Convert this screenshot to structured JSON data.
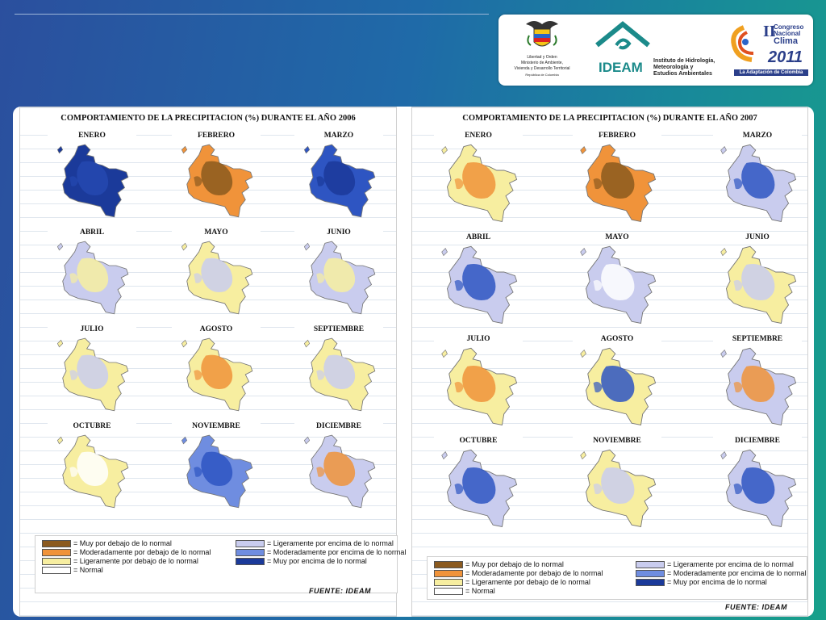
{
  "logos": {
    "gov_line1": "Libertad y Orden",
    "gov_line2": "Ministerio de Ambiente,",
    "gov_line3": "Vivienda y Desarrollo Territorial",
    "gov_line4": "República de Colombia",
    "ideam_name": "IDEAM",
    "ideam_sub1": "Instituto de Hidrología,",
    "ideam_sub2": "Meteorología y",
    "ideam_sub3": "Estudios Ambientales",
    "congress_roman": "II",
    "congress_line1": "Congreso",
    "congress_line2": "Nacional",
    "congress_line3": "Clima",
    "congress_year": "2011",
    "congress_tagline": "La Adaptación de Colombia"
  },
  "panels": [
    {
      "title": "COMPORTAMIENTO DE LA PRECIPITACION (%) DURANTE EL AÑO 2006",
      "months": [
        "ENERO",
        "FEBRERO",
        "MARZO",
        "ABRIL",
        "MAYO",
        "JUNIO",
        "JULIO",
        "AGOSTO",
        "SEPTIEMBRE",
        "OCTUBRE",
        "NOVIEMBRE",
        "DICIEMBRE"
      ],
      "source": "FUENTE: IDEAM"
    },
    {
      "title": "COMPORTAMIENTO DE LA PRECIPITACION (%) DURANTE EL AÑO 2007",
      "months": [
        "ENERO",
        "FEBRERO",
        "MARZO",
        "ABRIL",
        "MAYO",
        "JUNIO",
        "JULIO",
        "AGOSTO",
        "SEPTIEMBRE",
        "OCTUBRE",
        "NOVIEMBRE",
        "DICIEMBRE"
      ],
      "source": "FUENTE: IDEAM"
    }
  ],
  "legend": [
    {
      "label": "= Muy por debajo de lo normal",
      "color": "#8b5a1f"
    },
    {
      "label": "= Moderadamente por debajo de lo normal",
      "color": "#f0933a"
    },
    {
      "label": "= Ligeramente por debajo de lo normal",
      "color": "#f7eea0"
    },
    {
      "label": "= Normal",
      "color": "#ffffff"
    },
    {
      "label": "= Ligeramente por encima de lo normal",
      "color": "#c9ccee"
    },
    {
      "label": "= Moderadamente por encima de lo normal",
      "color": "#6f8de0"
    },
    {
      "label": "= Muy por encima de lo normal",
      "color": "#1b3a9a"
    }
  ],
  "map_fills": {
    "2006": [
      [
        "#1b3a9a",
        "#2449b0"
      ],
      [
        "#f0933a",
        "#8b5a1f"
      ],
      [
        "#2e55c2",
        "#1b3a9a"
      ],
      [
        "#c9ccee",
        "#f7eea0"
      ],
      [
        "#f7eea0",
        "#c9ccee"
      ],
      [
        "#c9ccee",
        "#f7eea0"
      ],
      [
        "#f7eea0",
        "#c9ccee"
      ],
      [
        "#f7eea0",
        "#f0933a"
      ],
      [
        "#f7eea0",
        "#c9ccee"
      ],
      [
        "#f7eea0",
        "#ffffff"
      ],
      [
        "#6f8de0",
        "#2e55c2"
      ],
      [
        "#c9ccee",
        "#f0933a"
      ]
    ],
    "2007": [
      [
        "#f7eea0",
        "#f0933a"
      ],
      [
        "#f0933a",
        "#8b5a1f"
      ],
      [
        "#c9ccee",
        "#2e55c2"
      ],
      [
        "#c9ccee",
        "#2e55c2"
      ],
      [
        "#c9ccee",
        "#ffffff"
      ],
      [
        "#f7eea0",
        "#c9ccee"
      ],
      [
        "#f7eea0",
        "#f0933a"
      ],
      [
        "#f7eea0",
        "#2e55c2"
      ],
      [
        "#c9ccee",
        "#f0933a"
      ],
      [
        "#c9ccee",
        "#2e55c2"
      ],
      [
        "#f7eea0",
        "#c9ccee"
      ],
      [
        "#c9ccee",
        "#2e55c2"
      ]
    ]
  }
}
